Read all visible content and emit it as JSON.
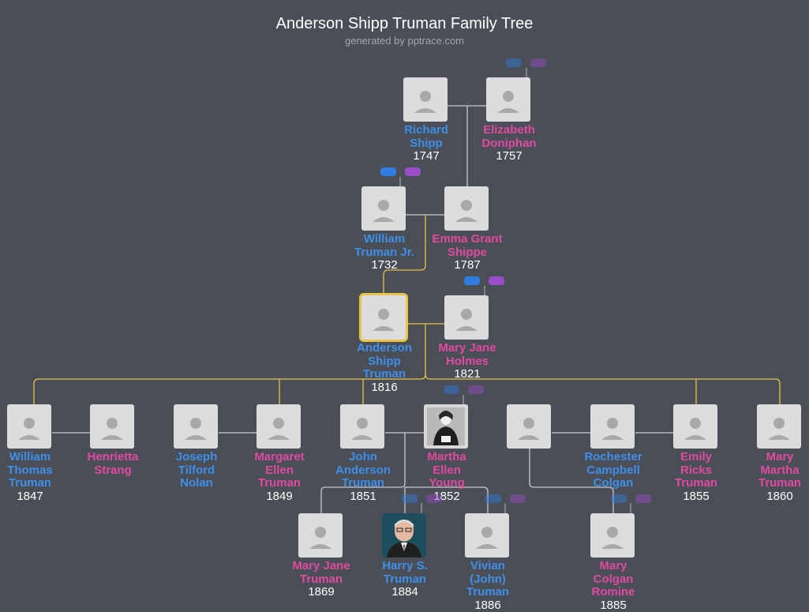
{
  "title": "Anderson Shipp Truman Family Tree",
  "subtitle": "generated by pptrace.com",
  "colors": {
    "background": "#4a4e57",
    "male": "#3f8fe8",
    "female": "#e04aa0",
    "focus": "#e8c34a",
    "link": "#c9c9c9"
  },
  "people": [
    {
      "id": "richard_shipp",
      "name_lines": [
        "Richard",
        "Shipp"
      ],
      "year": "1747",
      "sex": "m"
    },
    {
      "id": "elizabeth_doniphan",
      "name_lines": [
        "Elizabeth",
        "Doniphan"
      ],
      "year": "1757",
      "sex": "f"
    },
    {
      "id": "william_truman_jr",
      "name_lines": [
        "William",
        "Truman Jr."
      ],
      "year": "1732",
      "sex": "m"
    },
    {
      "id": "emma_grant_shippe",
      "name_lines": [
        "Emma Grant",
        "Shippe"
      ],
      "year": "1787",
      "sex": "f"
    },
    {
      "id": "anderson_shipp_truman",
      "name_lines": [
        "Anderson",
        "Shipp",
        "Truman"
      ],
      "year": "1816",
      "sex": "m"
    },
    {
      "id": "mary_jane_holmes",
      "name_lines": [
        "Mary Jane",
        "Holmes"
      ],
      "year": "1821",
      "sex": "f"
    },
    {
      "id": "william_thomas_truman",
      "name_lines": [
        "William",
        "Thomas",
        "Truman"
      ],
      "year": "1847",
      "sex": "m"
    },
    {
      "id": "henrietta_strang",
      "name_lines": [
        "Henrietta",
        "Strang"
      ],
      "year": "",
      "sex": "f"
    },
    {
      "id": "joseph_tilford_nolan",
      "name_lines": [
        "Joseph",
        "Tilford",
        "Nolan"
      ],
      "year": "",
      "sex": "m"
    },
    {
      "id": "margaret_ellen_truman",
      "name_lines": [
        "Margaret",
        "Ellen",
        "Truman"
      ],
      "year": "1849",
      "sex": "f"
    },
    {
      "id": "john_anderson_truman",
      "name_lines": [
        "John",
        "Anderson",
        "Truman"
      ],
      "year": "1851",
      "sex": "m"
    },
    {
      "id": "martha_ellen_young",
      "name_lines": [
        "Martha",
        "Ellen",
        "Young"
      ],
      "year": "1852",
      "sex": "f",
      "photo": "portrait"
    },
    {
      "id": "unknown_spouse",
      "name_lines": [],
      "year": "",
      "sex": "m"
    },
    {
      "id": "rochester_campbell_colgan",
      "name_lines": [
        "Rochester",
        "Campbell",
        "Colgan"
      ],
      "year": "",
      "sex": "m"
    },
    {
      "id": "emily_ricks_truman",
      "name_lines": [
        "Emily",
        "Ricks",
        "Truman"
      ],
      "year": "1855",
      "sex": "f"
    },
    {
      "id": "mary_martha_truman",
      "name_lines": [
        "Mary",
        "Martha",
        "Truman"
      ],
      "year": "1860",
      "sex": "f"
    },
    {
      "id": "mary_jane_truman",
      "name_lines": [
        "Mary Jane",
        "Truman"
      ],
      "year": "1869",
      "sex": "f"
    },
    {
      "id": "harry_s_truman",
      "name_lines": [
        "Harry S.",
        "Truman"
      ],
      "year": "1884",
      "sex": "m",
      "photo": "harry"
    },
    {
      "id": "vivian_john_truman",
      "name_lines": [
        "Vivian",
        "(John)",
        "Truman"
      ],
      "year": "1886",
      "sex": "m"
    },
    {
      "id": "mary_colgan_romine",
      "name_lines": [
        "Mary",
        "Colgan",
        "Romine"
      ],
      "year": "1885",
      "sex": "f"
    }
  ]
}
